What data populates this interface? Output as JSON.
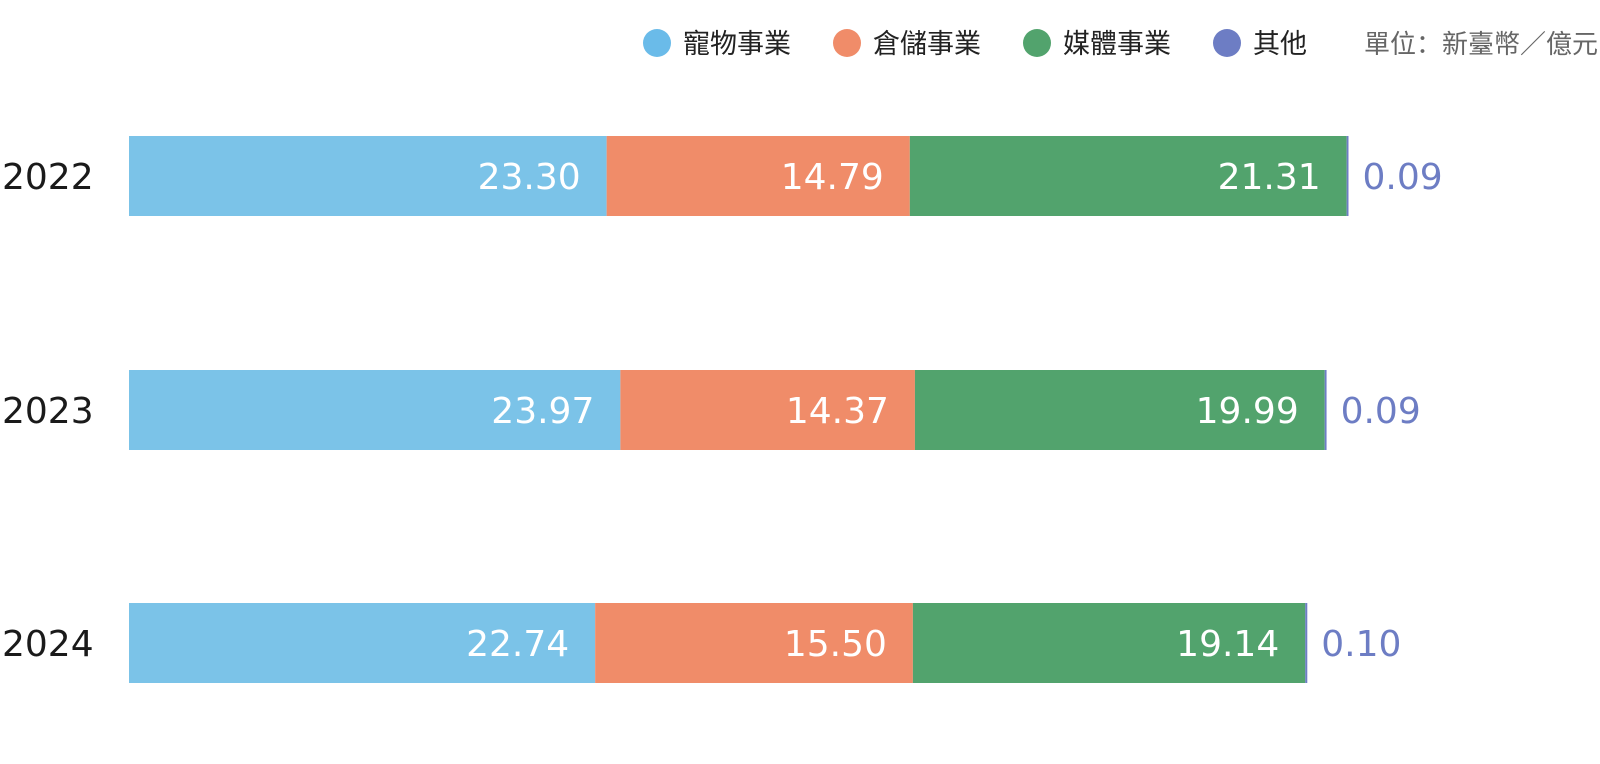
{
  "chart_data": {
    "type": "bar",
    "orientation": "horizontal",
    "stacked": true,
    "categories": [
      "2022",
      "2023",
      "2024"
    ],
    "series": [
      {
        "name": "寵物事業",
        "color": "#7bc3e8",
        "values": [
          23.3,
          23.97,
          22.74
        ],
        "labels": [
          "23.30",
          "23.97",
          "22.74"
        ]
      },
      {
        "name": "倉儲事業",
        "color": "#f08c69",
        "values": [
          14.79,
          14.37,
          15.5
        ],
        "labels": [
          "14.79",
          "14.37",
          "15.50"
        ]
      },
      {
        "name": "媒體事業",
        "color": "#52a36d",
        "values": [
          21.31,
          19.99,
          19.14
        ],
        "labels": [
          "21.31",
          "19.99",
          "19.14"
        ]
      },
      {
        "name": "其他",
        "color": "#6d7dc4",
        "values": [
          0.09,
          0.09,
          0.1
        ],
        "labels": [
          "0.09",
          "0.09",
          "0.10"
        ]
      }
    ],
    "legend_marker_colors": [
      "#6abbe9",
      "#f08c69",
      "#52a36d",
      "#6d7dc4"
    ],
    "unit": "單位：新臺幣／億元",
    "legend_position": "top-right",
    "grid": false
  }
}
